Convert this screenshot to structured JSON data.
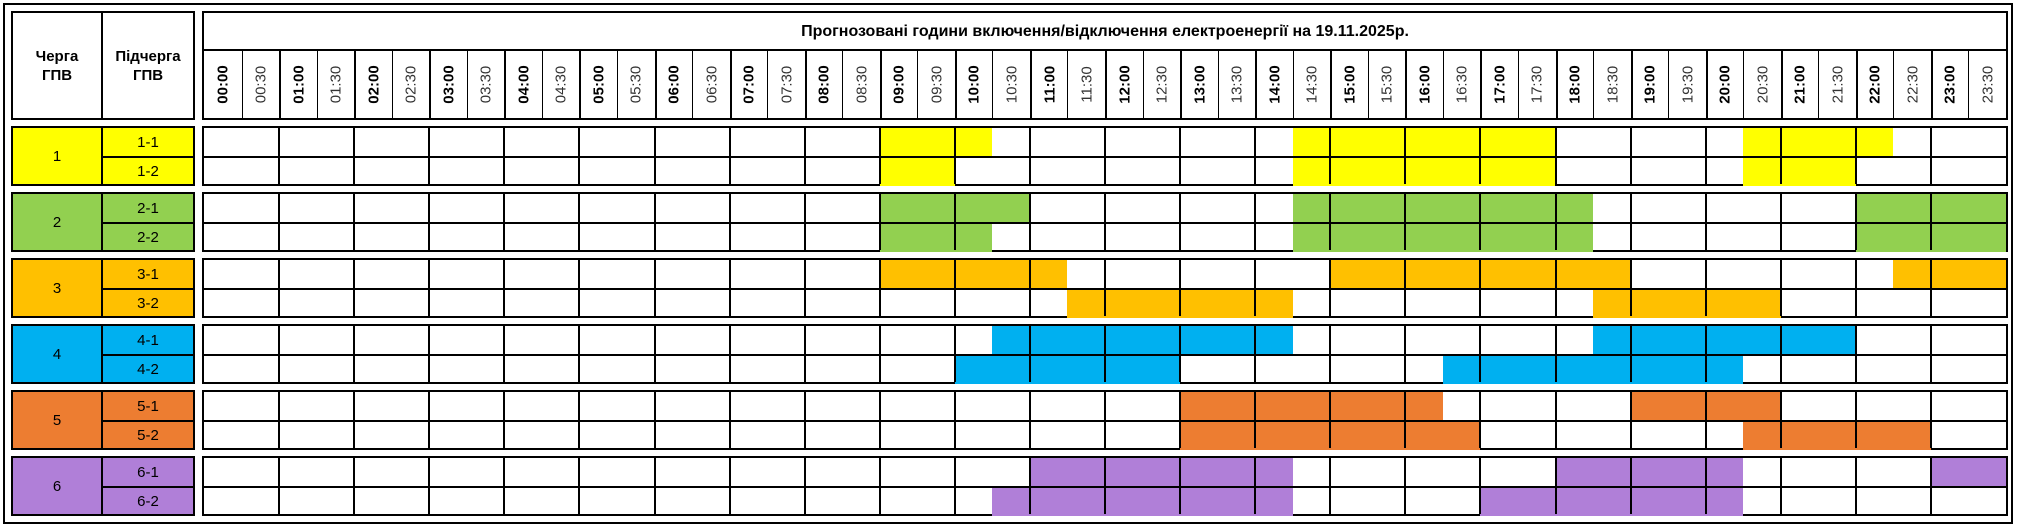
{
  "header": {
    "queue_label": "Черга ГПВ",
    "subqueue_label": "Підчерга ГПВ",
    "title": "Прогнозовані години включення/відключення електроенергії на 19.11.2025р."
  },
  "times": [
    "00:00",
    "00:30",
    "01:00",
    "01:30",
    "02:00",
    "02:30",
    "03:00",
    "03:30",
    "04:00",
    "04:30",
    "05:00",
    "05:30",
    "06:00",
    "06:30",
    "07:00",
    "07:30",
    "08:00",
    "08:30",
    "09:00",
    "09:30",
    "10:00",
    "10:30",
    "11:00",
    "11:30",
    "12:00",
    "12:30",
    "13:00",
    "13:30",
    "14:00",
    "14:30",
    "15:00",
    "15:30",
    "16:00",
    "16:30",
    "17:00",
    "17:30",
    "18:00",
    "18:30",
    "19:00",
    "19:30",
    "20:00",
    "20:30",
    "21:00",
    "21:30",
    "22:00",
    "22:30",
    "23:00",
    "23:30"
  ],
  "groups": [
    {
      "label": "1",
      "color": "#FFFF00",
      "subgroups": [
        {
          "label": "1-1",
          "outages": [
            [
              "09:00",
              "10:30"
            ],
            [
              "14:30",
              "18:00"
            ],
            [
              "20:30",
              "22:30"
            ]
          ]
        },
        {
          "label": "1-2",
          "outages": [
            [
              "09:00",
              "10:00"
            ],
            [
              "14:30",
              "18:00"
            ],
            [
              "20:30",
              "22:00"
            ]
          ]
        }
      ]
    },
    {
      "label": "2",
      "color": "#92D050",
      "subgroups": [
        {
          "label": "2-1",
          "outages": [
            [
              "09:00",
              "11:00"
            ],
            [
              "14:30",
              "18:30"
            ],
            [
              "22:00",
              "24:00"
            ]
          ]
        },
        {
          "label": "2-2",
          "outages": [
            [
              "09:00",
              "10:30"
            ],
            [
              "14:30",
              "18:30"
            ],
            [
              "22:00",
              "24:00"
            ]
          ]
        }
      ]
    },
    {
      "label": "3",
      "color": "#FFC000",
      "subgroups": [
        {
          "label": "3-1",
          "outages": [
            [
              "09:00",
              "11:30"
            ],
            [
              "15:00",
              "19:00"
            ],
            [
              "22:30",
              "24:00"
            ]
          ]
        },
        {
          "label": "3-2",
          "outages": [
            [
              "11:30",
              "14:30"
            ],
            [
              "18:30",
              "21:00"
            ]
          ]
        }
      ]
    },
    {
      "label": "4",
      "color": "#00B0F0",
      "subgroups": [
        {
          "label": "4-1",
          "outages": [
            [
              "10:30",
              "14:30"
            ],
            [
              "18:30",
              "22:00"
            ]
          ]
        },
        {
          "label": "4-2",
          "outages": [
            [
              "10:00",
              "13:00"
            ],
            [
              "16:30",
              "20:30"
            ]
          ]
        }
      ]
    },
    {
      "label": "5",
      "color": "#ED7D31",
      "subgroups": [
        {
          "label": "5-1",
          "outages": [
            [
              "13:00",
              "16:30"
            ],
            [
              "19:00",
              "21:00"
            ]
          ]
        },
        {
          "label": "5-2",
          "outages": [
            [
              "13:00",
              "17:00"
            ],
            [
              "20:30",
              "23:00"
            ]
          ]
        }
      ]
    },
    {
      "label": "6",
      "color": "#B07FD8",
      "subgroups": [
        {
          "label": "6-1",
          "outages": [
            [
              "11:00",
              "14:30"
            ],
            [
              "18:00",
              "20:30"
            ],
            [
              "23:00",
              "24:00"
            ]
          ]
        },
        {
          "label": "6-2",
          "outages": [
            [
              "10:30",
              "14:30"
            ],
            [
              "17:00",
              "20:30"
            ]
          ]
        }
      ]
    }
  ]
}
